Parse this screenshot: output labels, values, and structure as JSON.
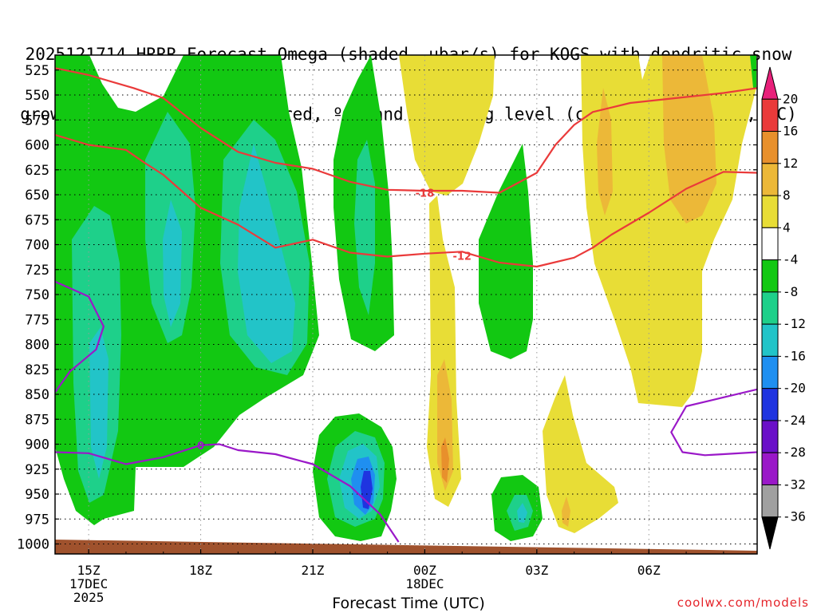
{
  "title_line1": "2025121714 HRRR Forecast Omega (shaded, μbar/s) for KOGS with dendritic snow",
  "title_line2": "growth region (contoured, red, ºC) and freezing level (contoured, purple, ºC)",
  "xlabel": "Forecast Time (UTC)",
  "credit": "coolwx.com/models",
  "chart_data": {
    "type": "time-height contour",
    "x_range_hours": [
      14.1,
      32.9
    ],
    "y_range_hpa": [
      510,
      1010
    ],
    "y_ticks": [
      "525",
      "550",
      "575",
      "600",
      "625",
      "650",
      "675",
      "700",
      "725",
      "750",
      "775",
      "800",
      "825",
      "850",
      "875",
      "900",
      "925",
      "950",
      "975",
      "1000"
    ],
    "y_tick_values": [
      525,
      550,
      575,
      600,
      625,
      650,
      675,
      700,
      725,
      750,
      775,
      800,
      825,
      850,
      875,
      900,
      925,
      950,
      975,
      1000
    ],
    "x_ticks": [
      {
        "h": 15,
        "lines": [
          "15Z",
          "17DEC",
          "2025"
        ]
      },
      {
        "h": 18,
        "lines": [
          "18Z"
        ]
      },
      {
        "h": 21,
        "lines": [
          "21Z"
        ]
      },
      {
        "h": 24,
        "lines": [
          "00Z",
          "18DEC"
        ]
      },
      {
        "h": 27,
        "lines": [
          "03Z"
        ]
      },
      {
        "h": 30,
        "lines": [
          "06Z"
        ]
      }
    ],
    "colorbar": {
      "levels": [
        -36,
        -32,
        -28,
        -24,
        -20,
        -16,
        -12,
        -8,
        -4,
        4,
        8,
        12,
        16,
        20
      ],
      "labels": [
        "-36",
        "-32",
        "-28",
        "-24",
        "-20",
        "-16",
        "-12",
        "-8",
        "-4",
        "4",
        "8",
        "12",
        "16",
        "20"
      ],
      "colors": [
        "#000000",
        "#a0a0a0",
        "#9a18c8",
        "#6a10c8",
        "#1f34e0",
        "#1f8ff0",
        "#22c4c8",
        "#1ed08a",
        "#12c812",
        "#ffffff",
        "#e8dd36",
        "#ecb838",
        "#e8902c",
        "#ea3a3a",
        "#e8207a"
      ]
    },
    "contours": {
      "dgz": [
        {
          "label": "-18",
          "label_at": [
            24.0,
            648
          ],
          "points": [
            [
              14.1,
              523
            ],
            [
              15.0,
              530
            ],
            [
              16.2,
              543
            ],
            [
              17.0,
              553
            ],
            [
              18.0,
              583
            ],
            [
              19.0,
              607
            ],
            [
              20.0,
              618
            ],
            [
              21.0,
              624
            ],
            [
              22.0,
              637
            ],
            [
              23.0,
              645
            ],
            [
              24.0,
              646
            ],
            [
              25.0,
              646
            ],
            [
              26.0,
              648
            ],
            [
              27.0,
              628
            ],
            [
              27.5,
              600
            ],
            [
              28.0,
              580
            ],
            [
              28.5,
              567
            ],
            [
              29.5,
              558
            ],
            [
              30.0,
              556
            ],
            [
              31.0,
              552
            ],
            [
              32.0,
              548
            ],
            [
              32.9,
              543
            ]
          ]
        },
        {
          "label": "-12",
          "label_at": [
            25.0,
            711
          ],
          "points": [
            [
              14.1,
              590
            ],
            [
              15.0,
              600
            ],
            [
              16.0,
              605
            ],
            [
              16.5,
              618
            ],
            [
              17.0,
              630
            ],
            [
              18.0,
              663
            ],
            [
              19.0,
              680
            ],
            [
              20.0,
              703
            ],
            [
              21.0,
              695
            ],
            [
              22.0,
              708
            ],
            [
              23.0,
              712
            ],
            [
              24.0,
              709
            ],
            [
              25.0,
              707
            ],
            [
              26.0,
              718
            ],
            [
              27.0,
              722
            ],
            [
              28.0,
              713
            ],
            [
              28.5,
              703
            ],
            [
              29.0,
              690
            ],
            [
              30.0,
              668
            ],
            [
              31.0,
              644
            ],
            [
              32.0,
              627
            ],
            [
              32.9,
              628
            ]
          ]
        }
      ],
      "freezing": [
        {
          "label": "0",
          "label_at": [
            18.0,
            901
          ],
          "points": [
            [
              14.1,
              908
            ],
            [
              15.0,
              909
            ],
            [
              16.0,
              920
            ],
            [
              17.0,
              913
            ],
            [
              18.0,
              901
            ],
            [
              18.5,
              900
            ],
            [
              19.0,
              906
            ],
            [
              20.0,
              910
            ],
            [
              21.0,
              920
            ],
            [
              22.0,
              942
            ],
            [
              22.8,
              970
            ],
            [
              23.3,
              998
            ]
          ]
        },
        {
          "label": "",
          "label_at": null,
          "points": [
            [
              14.1,
              737
            ],
            [
              15.0,
              752
            ],
            [
              15.4,
              782
            ],
            [
              15.2,
              805
            ],
            [
              14.5,
              827
            ],
            [
              14.1,
              848
            ]
          ]
        },
        {
          "label": "",
          "label_at": null,
          "points": [
            [
              32.9,
              845
            ],
            [
              32.0,
              853
            ],
            [
              31.0,
              862
            ],
            [
              30.6,
              888
            ],
            [
              30.9,
              908
            ],
            [
              31.5,
              911
            ],
            [
              32.0,
              910
            ],
            [
              32.9,
              908
            ]
          ]
        }
      ]
    },
    "terrain_pressure_hpa": {
      "start": 998,
      "end": 1012
    },
    "contour_labels": [
      "-18",
      "-12",
      "0"
    ]
  }
}
